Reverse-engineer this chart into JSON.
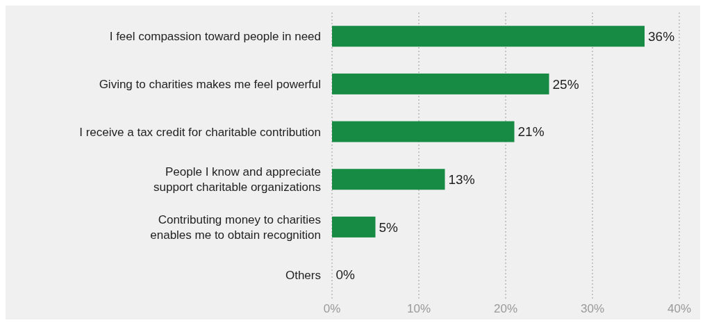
{
  "chart_data": {
    "type": "bar",
    "orientation": "horizontal",
    "categories": [
      "I feel compassion toward people in need",
      "Giving to charities makes me feel powerful",
      "I receive a tax credit for charitable contribution",
      "People I know and appreciate\nsupport charitable organizations",
      "Contributing money to charities\nenables me to obtain recognition",
      "Others"
    ],
    "values": [
      36,
      25,
      21,
      13,
      5,
      0
    ],
    "value_labels": [
      "36%",
      "25%",
      "21%",
      "13%",
      "5%",
      "0%"
    ],
    "color": "#178a43",
    "xlim": [
      0,
      40
    ],
    "xticks": [
      {
        "value": 0,
        "label": "0%"
      },
      {
        "value": 10,
        "label": "10%"
      },
      {
        "value": 20,
        "label": "20%"
      },
      {
        "value": 30,
        "label": "30%"
      },
      {
        "value": 40,
        "label": "40%"
      }
    ],
    "grid": "x",
    "legend": false
  }
}
